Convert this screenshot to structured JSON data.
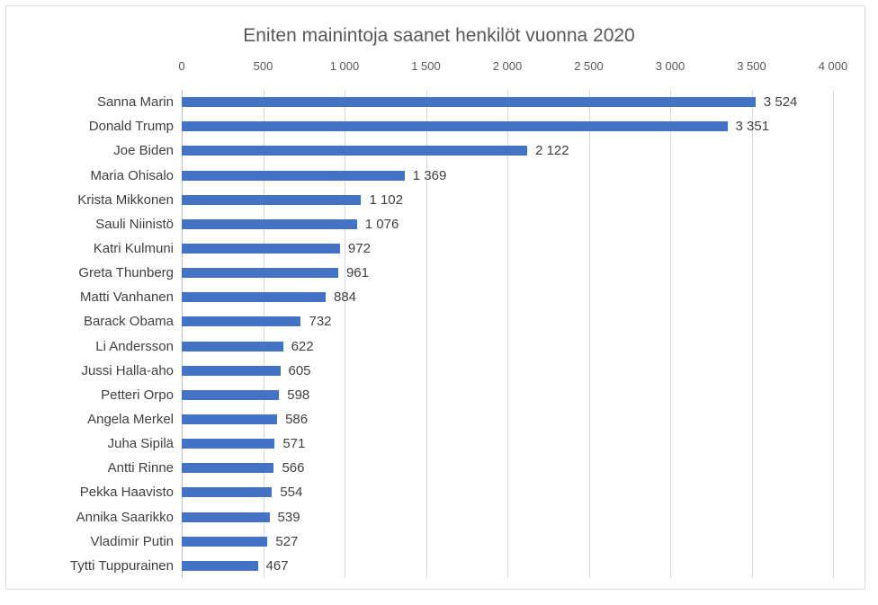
{
  "chart": {
    "title": "Eniten mainintoja saanet henkilöt vuonna 2020"
  },
  "chart_data": {
    "type": "bar",
    "orientation": "horizontal",
    "title": "Eniten mainintoja saanet henkilöt vuonna 2020",
    "categories": [
      "Sanna Marin",
      "Donald Trump",
      "Joe Biden",
      "Maria Ohisalo",
      "Krista Mikkonen",
      "Sauli Niinistö",
      "Katri Kulmuni",
      "Greta Thunberg",
      "Matti Vanhanen",
      "Barack Obama",
      "Li Andersson",
      "Jussi Halla-aho",
      "Petteri Orpo",
      "Angela Merkel",
      "Juha Sipilä",
      "Antti Rinne",
      "Pekka Haavisto",
      "Annika Saarikko",
      "Vladimir Putin",
      "Tytti Tuppurainen"
    ],
    "values": [
      3524,
      3351,
      2122,
      1369,
      1102,
      1076,
      972,
      961,
      884,
      732,
      622,
      605,
      598,
      586,
      571,
      566,
      554,
      539,
      527,
      467
    ],
    "value_labels": [
      "3 524",
      "3 351",
      "2 122",
      "1 369",
      "1 102",
      "1 076",
      "972",
      "961",
      "884",
      "732",
      "622",
      "605",
      "598",
      "586",
      "571",
      "566",
      "554",
      "539",
      "527",
      "467"
    ],
    "x_ticks": [
      "0",
      "500",
      "1 000",
      "1 500",
      "2 000",
      "2 500",
      "3 000",
      "3 500",
      "4 000"
    ],
    "x_tick_values": [
      0,
      500,
      1000,
      1500,
      2000,
      2500,
      3000,
      3500,
      4000
    ],
    "xlim": [
      0,
      4000
    ],
    "xlabel": "",
    "ylabel": "",
    "legend": "none",
    "grid": "vertical-major",
    "axis_labels_position": "top",
    "bar_color": "#4472C4",
    "gridline_color": "#D9D9D9",
    "axis_line_color": "#BFBFBF",
    "label_text_color": "#404040",
    "tick_text_color": "#595959",
    "title_text_color": "#595959",
    "border_color": "#D9D9D9",
    "background_color": "#FFFFFF"
  }
}
